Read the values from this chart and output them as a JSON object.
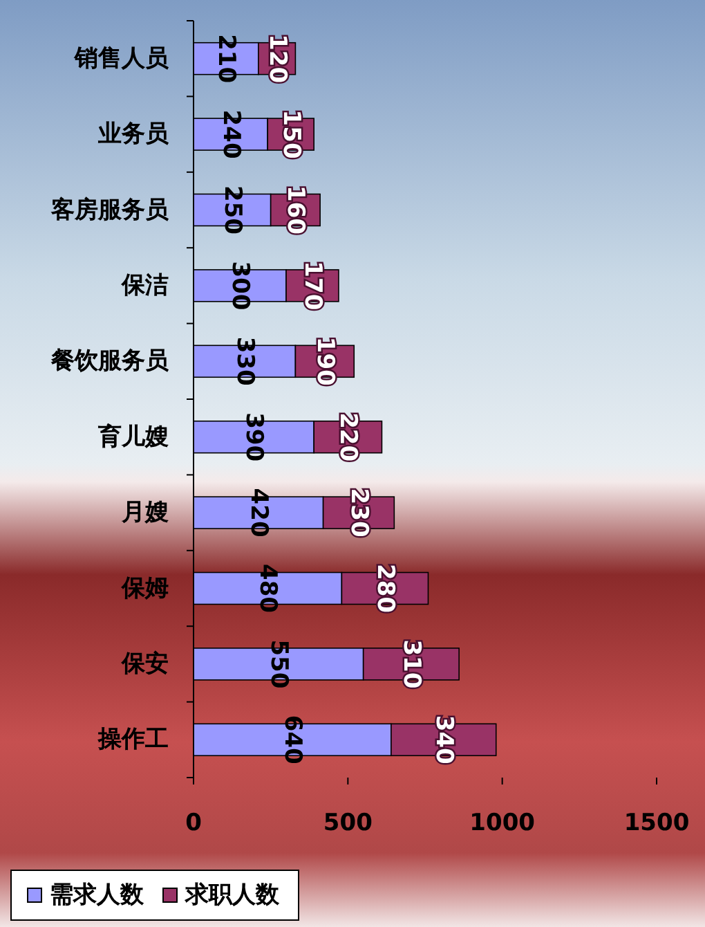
{
  "chart_data": {
    "type": "bar",
    "orientation": "horizontal",
    "stacked": true,
    "categories": [
      "销售人员",
      "业务员",
      "客房服务员",
      "保洁",
      "餐饮服务员",
      "育儿嫂",
      "月嫂",
      "保姆",
      "保安",
      "操作工"
    ],
    "series": [
      {
        "name": "需求人数",
        "color": "#9999ff",
        "values": [
          210,
          240,
          250,
          300,
          330,
          390,
          420,
          480,
          550,
          640
        ]
      },
      {
        "name": "求职人数",
        "color": "#993366",
        "values": [
          120,
          150,
          160,
          170,
          190,
          220,
          230,
          280,
          310,
          340
        ]
      }
    ],
    "xlim": [
      0,
      1500
    ],
    "xticks": [
      0,
      500,
      1000,
      1500
    ],
    "data_labels": true,
    "legend": "bottom",
    "grid": false
  }
}
